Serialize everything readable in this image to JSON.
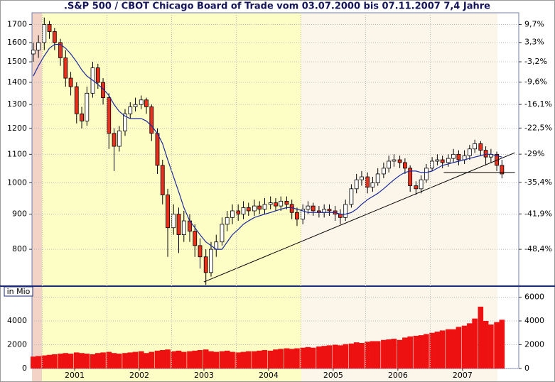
{
  "chart_data": [
    {
      "type": "candlestick",
      "title": ".S&P 500 / CBOT Chicago Board of Trade vom 03.07.2000 bis 07.11.2007 7,4 Jahre",
      "x": [
        2000.86,
        2000.94,
        2001.03,
        2001.11,
        2001.19,
        2001.28,
        2001.36,
        2001.44,
        2001.53,
        2001.61,
        2001.69,
        2001.78,
        2001.86,
        2001.94,
        2002.03,
        2002.11,
        2002.19,
        2002.28,
        2002.36,
        2002.44,
        2002.53,
        2002.61,
        2002.69,
        2002.78,
        2002.86,
        2002.94,
        2003.03,
        2003.11,
        2003.19,
        2003.28,
        2003.36,
        2003.44,
        2003.53,
        2003.61,
        2003.69,
        2003.78,
        2003.86,
        2003.94,
        2004.03,
        2004.11,
        2004.19,
        2004.28,
        2004.36,
        2004.44,
        2004.53,
        2004.61,
        2004.69,
        2004.78,
        2004.86,
        2004.94,
        2005.03,
        2005.11,
        2005.19,
        2005.28,
        2005.36,
        2005.44,
        2005.53,
        2005.61,
        2005.69,
        2005.78,
        2005.86,
        2005.94,
        2006.03,
        2006.11,
        2006.19,
        2006.28,
        2006.36,
        2006.44,
        2006.53,
        2006.61,
        2006.69,
        2006.78,
        2006.86,
        2006.94,
        2007.03,
        2007.11,
        2007.19,
        2007.28,
        2007.36,
        2007.44,
        2007.53,
        2007.61,
        2007.69,
        2007.78,
        2007.86,
        2007.94,
        2008.03,
        2008.11
      ],
      "open": [
        1540,
        1560,
        1600,
        1700,
        1660,
        1600,
        1520,
        1420,
        1380,
        1260,
        1230,
        1350,
        1470,
        1400,
        1330,
        1180,
        1130,
        1190,
        1260,
        1290,
        1300,
        1320,
        1290,
        1180,
        1060,
        960,
        860,
        900,
        840,
        880,
        850,
        810,
        780,
        740,
        800,
        820,
        870,
        890,
        910,
        900,
        920,
        910,
        925,
        915,
        930,
        935,
        925,
        940,
        930,
        905,
        885,
        915,
        925,
        910,
        905,
        915,
        910,
        900,
        890,
        930,
        980,
        1010,
        1020,
        985,
        1000,
        1030,
        1050,
        1075,
        1080,
        1070,
        1050,
        990,
        980,
        1010,
        1050,
        1075,
        1080,
        1070,
        1085,
        1100,
        1080,
        1095,
        1120,
        1140,
        1115,
        1090,
        1100,
        1060
      ],
      "high": [
        1600,
        1640,
        1740,
        1720,
        1680,
        1620,
        1560,
        1450,
        1400,
        1290,
        1380,
        1500,
        1490,
        1420,
        1350,
        1200,
        1210,
        1280,
        1310,
        1330,
        1340,
        1330,
        1300,
        1200,
        1080,
        980,
        930,
        920,
        910,
        900,
        870,
        830,
        800,
        820,
        840,
        890,
        910,
        930,
        930,
        940,
        935,
        945,
        940,
        950,
        955,
        950,
        955,
        955,
        945,
        920,
        930,
        940,
        935,
        925,
        930,
        930,
        925,
        915,
        945,
        995,
        1030,
        1040,
        1035,
        1020,
        1050,
        1070,
        1095,
        1100,
        1095,
        1085,
        1060,
        1005,
        1025,
        1065,
        1090,
        1100,
        1095,
        1100,
        1120,
        1115,
        1115,
        1135,
        1155,
        1150,
        1130,
        1120,
        1110,
        1080
      ],
      "low": [
        1500,
        1520,
        1560,
        1620,
        1560,
        1480,
        1380,
        1340,
        1220,
        1200,
        1210,
        1330,
        1370,
        1300,
        1120,
        1040,
        1110,
        1170,
        1240,
        1270,
        1280,
        1260,
        1150,
        1030,
        930,
        780,
        840,
        790,
        820,
        820,
        780,
        750,
        710,
        730,
        780,
        810,
        850,
        870,
        880,
        885,
        895,
        895,
        900,
        900,
        915,
        910,
        910,
        915,
        885,
        865,
        870,
        900,
        895,
        890,
        890,
        895,
        880,
        870,
        880,
        920,
        965,
        990,
        965,
        970,
        990,
        1015,
        1035,
        1055,
        1050,
        1030,
        970,
        960,
        965,
        1000,
        1040,
        1060,
        1050,
        1055,
        1070,
        1060,
        1065,
        1080,
        1105,
        1095,
        1060,
        1070,
        1040,
        1015
      ],
      "close": [
        1560,
        1600,
        1700,
        1660,
        1600,
        1520,
        1420,
        1380,
        1260,
        1230,
        1350,
        1470,
        1400,
        1330,
        1180,
        1130,
        1190,
        1260,
        1290,
        1300,
        1320,
        1290,
        1180,
        1060,
        960,
        860,
        900,
        840,
        880,
        850,
        810,
        780,
        740,
        800,
        820,
        870,
        890,
        910,
        900,
        920,
        910,
        925,
        915,
        930,
        935,
        925,
        940,
        930,
        905,
        885,
        915,
        925,
        910,
        905,
        915,
        910,
        900,
        890,
        930,
        980,
        1010,
        1020,
        985,
        1000,
        1030,
        1050,
        1075,
        1080,
        1070,
        1050,
        990,
        980,
        1010,
        1050,
        1075,
        1080,
        1070,
        1085,
        1100,
        1080,
        1095,
        1120,
        1140,
        1115,
        1090,
        1100,
        1060,
        1030
      ],
      "up_color": "#ffffff",
      "down_color": "#e8301c",
      "series": [
        {
          "color": "#1a2a9a",
          "values": [
            1430,
            1480,
            1530,
            1570,
            1590,
            1590,
            1570,
            1540,
            1500,
            1460,
            1430,
            1410,
            1390,
            1370,
            1340,
            1300,
            1270,
            1250,
            1240,
            1240,
            1240,
            1230,
            1210,
            1180,
            1140,
            1080,
            1020,
            970,
            920,
            880,
            860,
            840,
            820,
            810,
            800,
            800,
            820,
            840,
            855,
            870,
            880,
            890,
            895,
            900,
            905,
            910,
            915,
            920,
            920,
            915,
            910,
            905,
            905,
            905,
            905,
            905,
            905,
            900,
            900,
            905,
            915,
            930,
            945,
            955,
            965,
            980,
            995,
            1010,
            1025,
            1035,
            1040,
            1040,
            1035,
            1035,
            1040,
            1050,
            1060,
            1065,
            1070,
            1075,
            1080,
            1085,
            1090,
            1095,
            1100,
            1100,
            1095,
            1090
          ]
        }
      ],
      "lines": [
        {
          "x": [
            2003.5,
            2008.31
          ],
          "y": [
            717,
            1106
          ],
          "color": "#000000"
        },
        {
          "x": [
            2007.21,
            2008.31
          ],
          "y": [
            1035,
            1035
          ],
          "color": "#000000"
        }
      ],
      "xlim": [
        2000.84,
        2008.37
      ],
      "ylim": [
        707,
        1768
      ],
      "log": true,
      "yticks": [
        800,
        900,
        1000,
        1100,
        1200,
        1300,
        1400,
        1500,
        1600,
        1700
      ],
      "y2lim": [
        -54.4,
        14.1
      ],
      "y2ticks": [
        {
          "value": 9.7,
          "label": "9,7%"
        },
        {
          "value": 3.3,
          "label": "3,3%"
        },
        {
          "value": -3.2,
          "label": "-3,2%"
        },
        {
          "value": -9.6,
          "label": "-9,6%"
        },
        {
          "value": -16.1,
          "label": "-16,1%"
        },
        {
          "value": -22.5,
          "label": "-22,5%"
        },
        {
          "value": -29,
          "label": "-29%"
        },
        {
          "value": -35.4,
          "label": "-35,4%"
        },
        {
          "value": -41.9,
          "label": "-41,9%"
        },
        {
          "value": -48.4,
          "label": "-48,4%"
        }
      ],
      "grid": true
    },
    {
      "type": "bar",
      "ylabel": "in Mio",
      "x": [
        2000.86,
        2000.94,
        2001.03,
        2001.11,
        2001.19,
        2001.28,
        2001.36,
        2001.44,
        2001.53,
        2001.61,
        2001.69,
        2001.78,
        2001.86,
        2001.94,
        2002.03,
        2002.11,
        2002.19,
        2002.28,
        2002.36,
        2002.44,
        2002.53,
        2002.61,
        2002.69,
        2002.78,
        2002.86,
        2002.94,
        2003.03,
        2003.11,
        2003.19,
        2003.28,
        2003.36,
        2003.44,
        2003.53,
        2003.61,
        2003.69,
        2003.78,
        2003.86,
        2003.94,
        2004.03,
        2004.11,
        2004.19,
        2004.28,
        2004.36,
        2004.44,
        2004.53,
        2004.61,
        2004.69,
        2004.78,
        2004.86,
        2004.94,
        2005.03,
        2005.11,
        2005.19,
        2005.28,
        2005.36,
        2005.44,
        2005.53,
        2005.61,
        2005.69,
        2005.78,
        2005.86,
        2005.94,
        2006.03,
        2006.11,
        2006.19,
        2006.28,
        2006.36,
        2006.44,
        2006.53,
        2006.61,
        2006.69,
        2006.78,
        2006.86,
        2006.94,
        2007.03,
        2007.11,
        2007.19,
        2007.28,
        2007.36,
        2007.44,
        2007.53,
        2007.61,
        2007.69,
        2007.78,
        2007.86,
        2007.94,
        2008.03,
        2008.11
      ],
      "values": [
        1000,
        1050,
        1100,
        1150,
        1200,
        1250,
        1300,
        1250,
        1350,
        1300,
        1250,
        1200,
        1300,
        1350,
        1400,
        1300,
        1250,
        1300,
        1350,
        1400,
        1450,
        1300,
        1400,
        1500,
        1550,
        1600,
        1450,
        1500,
        1400,
        1450,
        1500,
        1550,
        1600,
        1450,
        1400,
        1450,
        1500,
        1400,
        1350,
        1400,
        1450,
        1450,
        1500,
        1550,
        1500,
        1600,
        1650,
        1700,
        1650,
        1700,
        1750,
        1800,
        1750,
        1850,
        1900,
        1950,
        2000,
        1950,
        2050,
        2100,
        2200,
        2150,
        2250,
        2300,
        2300,
        2400,
        2450,
        2500,
        2400,
        2600,
        2700,
        2750,
        2800,
        2900,
        3000,
        3100,
        3200,
        3300,
        3300,
        3500,
        3600,
        3800,
        4200,
        5200,
        4000,
        3700,
        3900,
        4100
      ],
      "color": "#ee1111",
      "xlim": [
        2000.84,
        2008.37
      ],
      "ylim": [
        0,
        6925
      ],
      "yticks": [
        0,
        2000,
        4000,
        6000
      ],
      "xticks": [
        {
          "value": 2001.5,
          "label": "2001"
        },
        {
          "value": 2002.5,
          "label": "2002"
        },
        {
          "value": 2003.5,
          "label": "2003"
        },
        {
          "value": 2004.5,
          "label": "2004"
        },
        {
          "value": 2005.5,
          "label": "2005"
        },
        {
          "value": 2006.5,
          "label": "2006"
        },
        {
          "value": 2007.5,
          "label": "2007"
        }
      ],
      "grid": true
    }
  ]
}
